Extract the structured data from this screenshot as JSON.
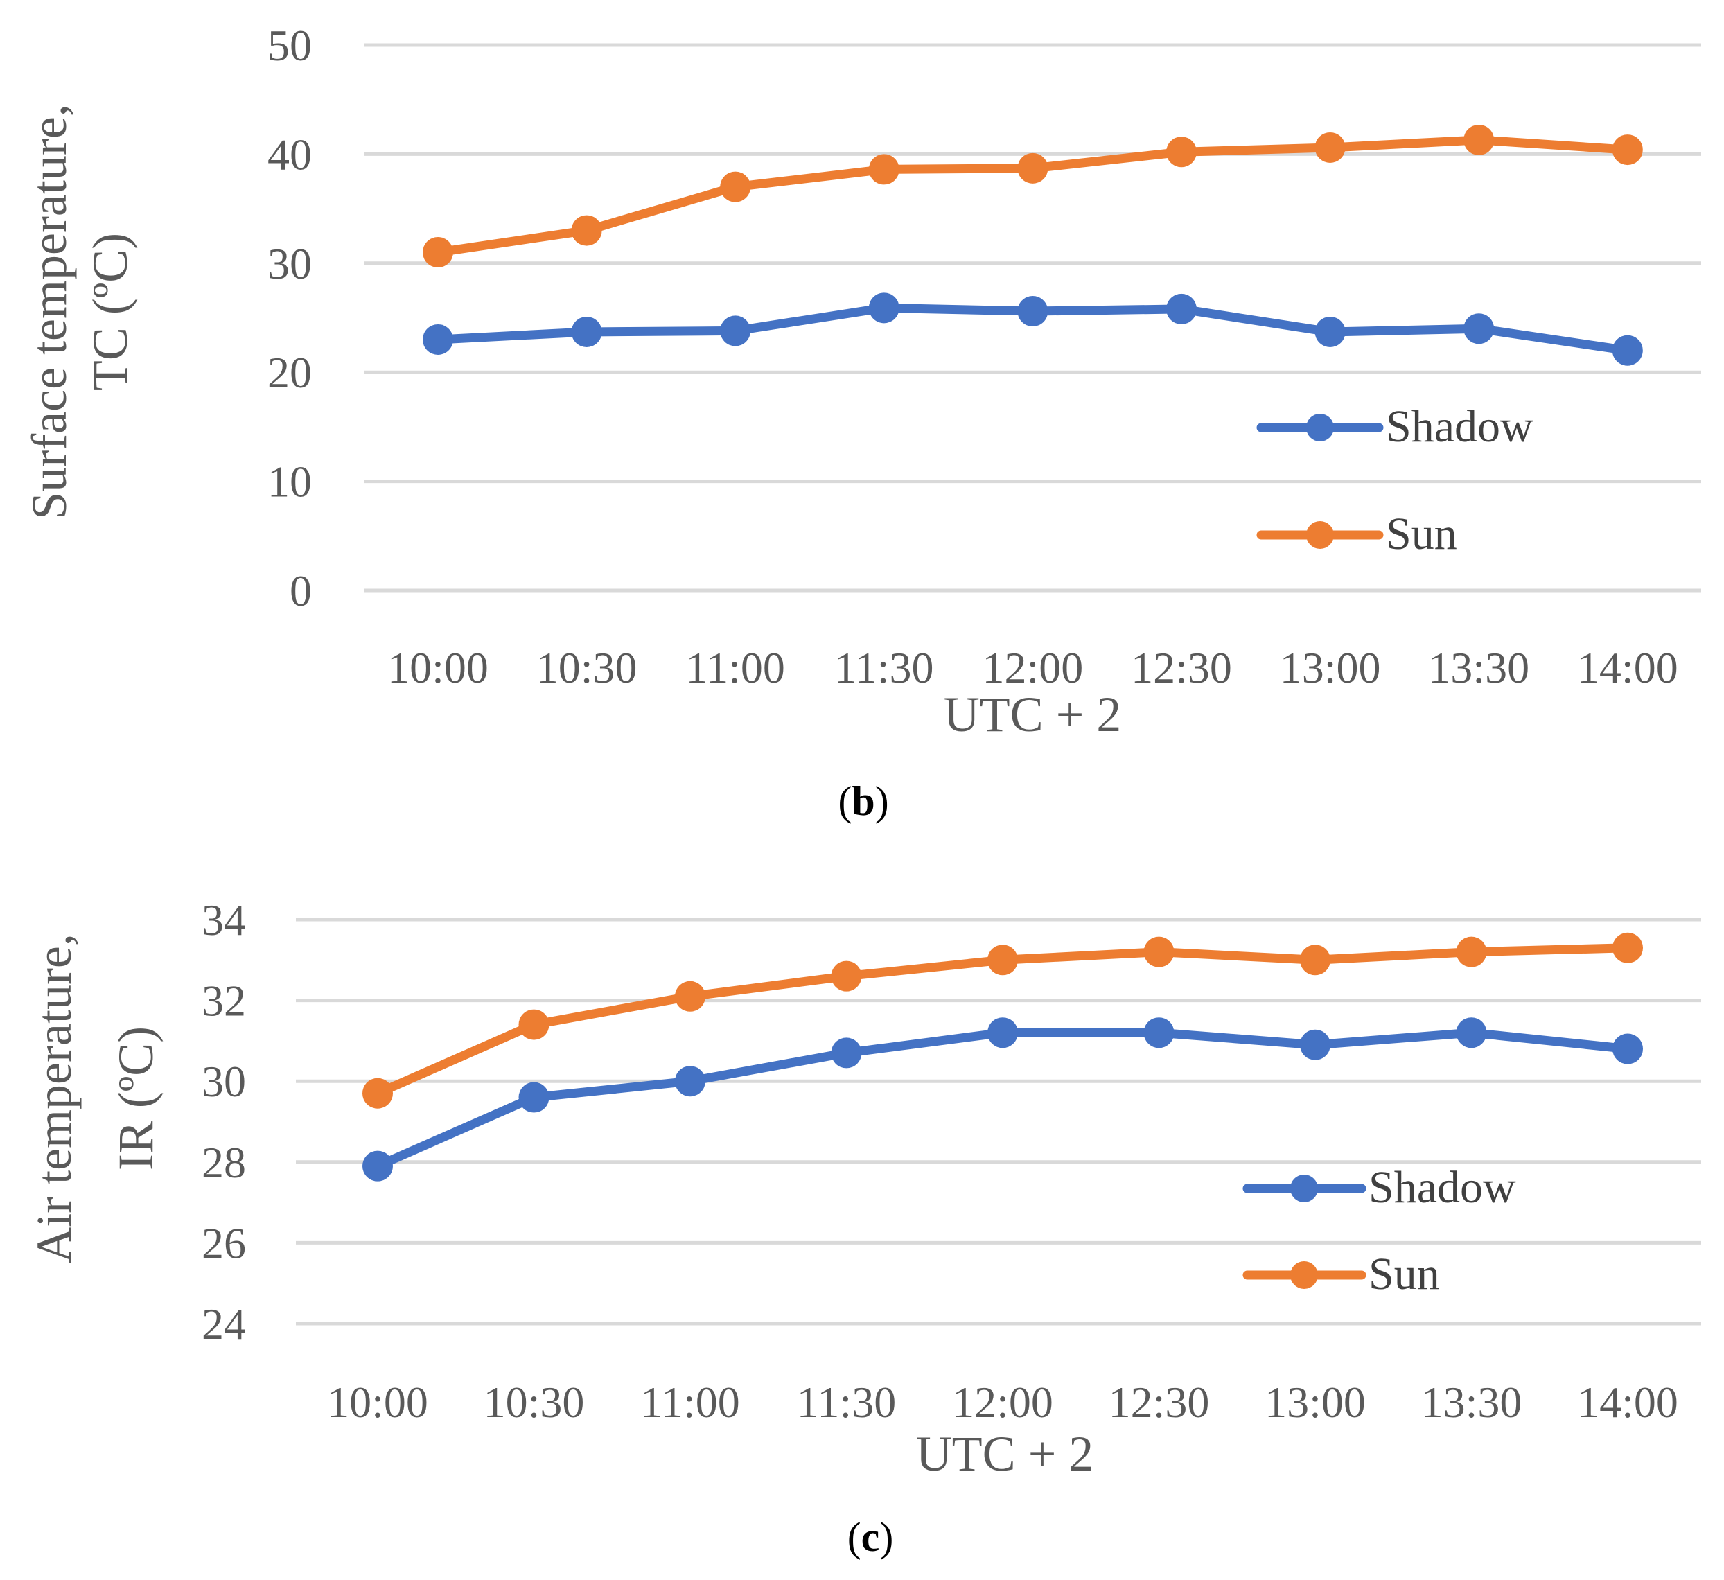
{
  "chart_data": [
    {
      "type": "line",
      "panel_label_open": "(",
      "panel_label_letter": "b",
      "panel_label_close": ")",
      "categories": [
        "10:00",
        "10:30",
        "11:00",
        "11:30",
        "12:00",
        "12:30",
        "13:00",
        "13:30",
        "14:00"
      ],
      "series": [
        {
          "name": "Shadow",
          "color": "#4472C4",
          "values": [
            23,
            23.7,
            23.8,
            25.9,
            25.6,
            25.8,
            23.7,
            24,
            22
          ]
        },
        {
          "name": "Sun",
          "color": "#ED7D31",
          "values": [
            31,
            33,
            37,
            38.6,
            38.7,
            40.2,
            40.6,
            41.3,
            40.4
          ]
        }
      ],
      "xlabel": "UTC + 2",
      "ylabel_lines": [
        "Surface temperature,",
        "TC (ºC)"
      ],
      "ylim": [
        0,
        50
      ],
      "yticks": [
        0,
        10,
        20,
        30,
        40,
        50
      ],
      "grid": true,
      "legend_position": "lower-right"
    },
    {
      "type": "line",
      "panel_label_open": "(",
      "panel_label_letter": "c",
      "panel_label_close": ")",
      "categories": [
        "10:00",
        "10:30",
        "11:00",
        "11:30",
        "12:00",
        "12:30",
        "13:00",
        "13:30",
        "14:00"
      ],
      "series": [
        {
          "name": "Shadow",
          "color": "#4472C4",
          "values": [
            27.9,
            29.6,
            30,
            30.7,
            31.2,
            31.2,
            30.9,
            31.2,
            30.8
          ]
        },
        {
          "name": "Sun",
          "color": "#ED7D31",
          "values": [
            29.7,
            31.4,
            32.1,
            32.6,
            33,
            33.2,
            33,
            33.2,
            33.3
          ]
        }
      ],
      "xlabel": "UTC + 2",
      "ylabel_lines": [
        "Air temperature,",
        "IR (ºC)"
      ],
      "ylim": [
        24,
        34
      ],
      "yticks": [
        24,
        26,
        28,
        30,
        32,
        34
      ],
      "grid": true,
      "legend_position": "lower-right"
    }
  ]
}
